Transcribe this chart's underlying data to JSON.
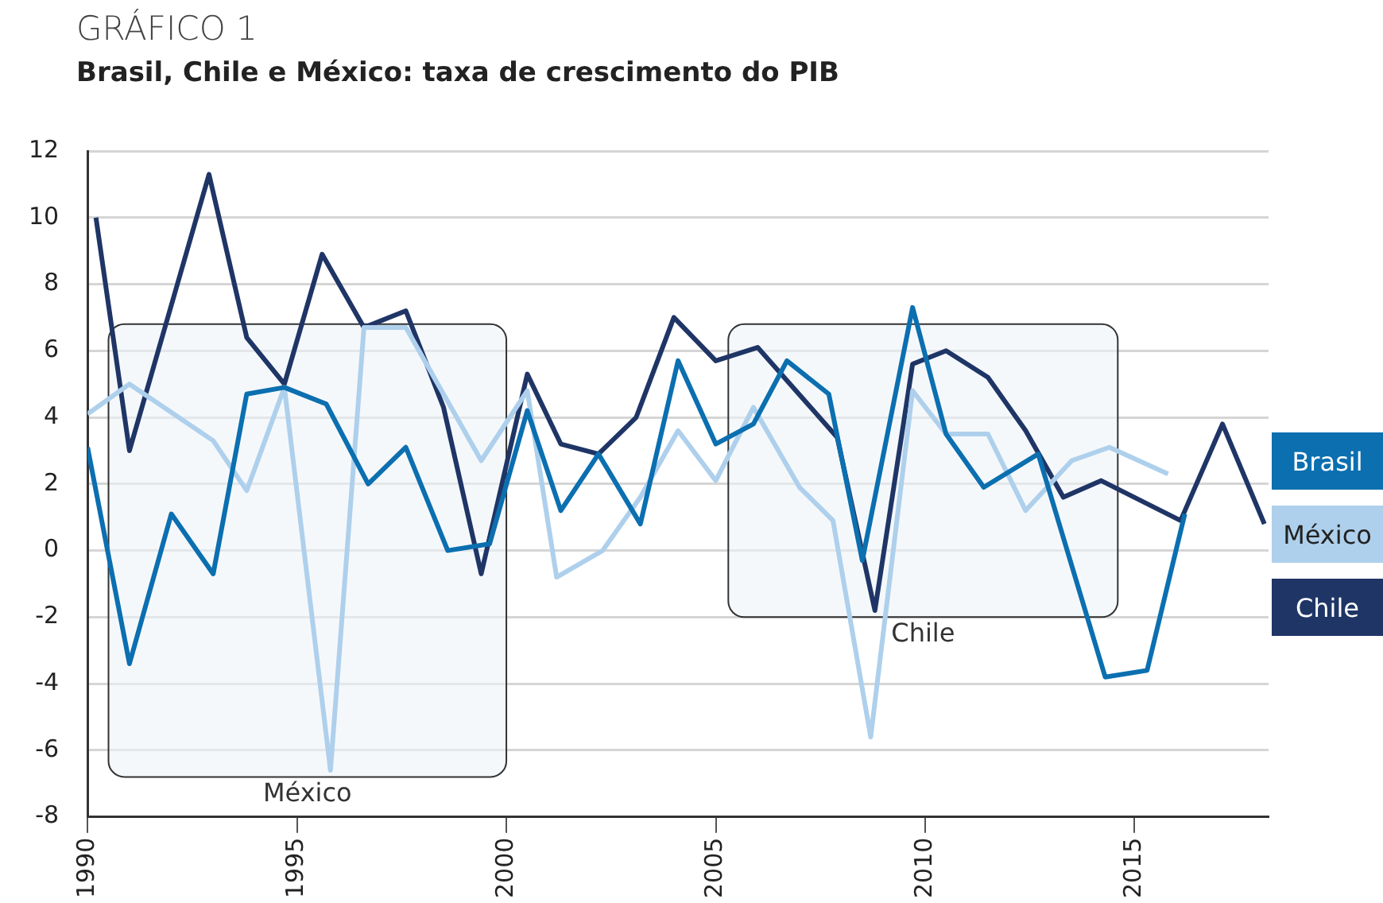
{
  "chart_data": {
    "type": "line",
    "title": "GRÁFICO 1",
    "subtitle": "Brasil, Chile e México: taxa de crescimento do PIB",
    "series": [
      {
        "name": "Brasil",
        "color": "#0b6fb0",
        "x": [
          1990.0,
          1991.0,
          1992.0,
          1993.0,
          1993.8,
          1994.7,
          1995.7,
          1996.7,
          1997.6,
          1998.6,
          1999.6,
          2000.5,
          2001.3,
          2002.2,
          2003.2,
          2004.1,
          2005.0,
          2005.9,
          2006.7,
          2007.7,
          2008.5,
          2009.7,
          2010.5,
          2011.4,
          2012.7,
          2014.3,
          2015.3,
          2016.2
        ],
        "values": [
          3.1,
          -3.4,
          1.1,
          -0.7,
          4.7,
          4.9,
          4.4,
          2.0,
          3.1,
          0.0,
          0.2,
          4.2,
          1.2,
          2.9,
          0.8,
          5.7,
          3.2,
          3.8,
          5.7,
          4.7,
          -0.3,
          7.3,
          3.5,
          1.9,
          2.9,
          -3.8,
          -3.6,
          1.1
        ]
      },
      {
        "name": "México",
        "color": "#aed0ec",
        "x": [
          1990.0,
          1991.0,
          1993.0,
          1993.8,
          1994.7,
          1995.8,
          1996.6,
          1997.6,
          1998.5,
          1999.4,
          2000.5,
          2001.2,
          2002.3,
          2003.2,
          2004.1,
          2005.0,
          2005.9,
          2007.0,
          2007.8,
          2008.7,
          2009.7,
          2010.5,
          2011.5,
          2012.4,
          2013.5,
          2014.4,
          2015.8
        ],
        "values": [
          4.1,
          5.0,
          3.3,
          1.8,
          4.9,
          -6.6,
          6.7,
          6.7,
          4.7,
          2.7,
          4.8,
          -0.8,
          0.0,
          1.6,
          3.6,
          2.1,
          4.3,
          1.9,
          0.9,
          -5.6,
          4.8,
          3.5,
          3.5,
          1.2,
          2.7,
          3.1,
          2.3
        ]
      },
      {
        "name": "Chile",
        "color": "#1f3566",
        "x": [
          1990.2,
          1991.0,
          1992.9,
          1993.8,
          1994.7,
          1995.6,
          1996.6,
          1997.6,
          1998.5,
          1999.4,
          2000.5,
          2001.3,
          2002.2,
          2003.1,
          2004.0,
          2005.0,
          2006.0,
          2007.9,
          2008.8,
          2009.7,
          2010.5,
          2011.5,
          2012.4,
          2013.3,
          2014.2,
          2016.1,
          2017.1,
          2018.1
        ],
        "values": [
          10.0,
          3.0,
          11.3,
          6.4,
          5.0,
          8.9,
          6.7,
          7.2,
          4.3,
          -0.7,
          5.3,
          3.2,
          2.9,
          4.0,
          7.0,
          5.7,
          6.1,
          3.4,
          -1.8,
          5.6,
          6.0,
          5.2,
          3.6,
          1.6,
          2.1,
          0.9,
          3.8,
          0.8
        ]
      }
    ],
    "xlim": [
      1990,
      2018.2
    ],
    "xticks": [
      1990,
      1995,
      2000,
      2005,
      2010,
      2015
    ],
    "ylim": [
      -8,
      12
    ],
    "yticks": [
      -8,
      -6,
      -4,
      -2,
      0,
      2,
      4,
      6,
      8,
      10,
      12
    ],
    "grid": "y",
    "legend": "right",
    "marker": "none",
    "line_style": "solid",
    "bands": [
      {
        "axis": "x",
        "from": 1990.5,
        "to": 2000.0,
        "label": "México",
        "color": "#eef3f8"
      },
      {
        "axis": "x",
        "from": 2005.3,
        "to": 2014.6,
        "label": "Chile",
        "color": "#eef3f8"
      }
    ]
  }
}
